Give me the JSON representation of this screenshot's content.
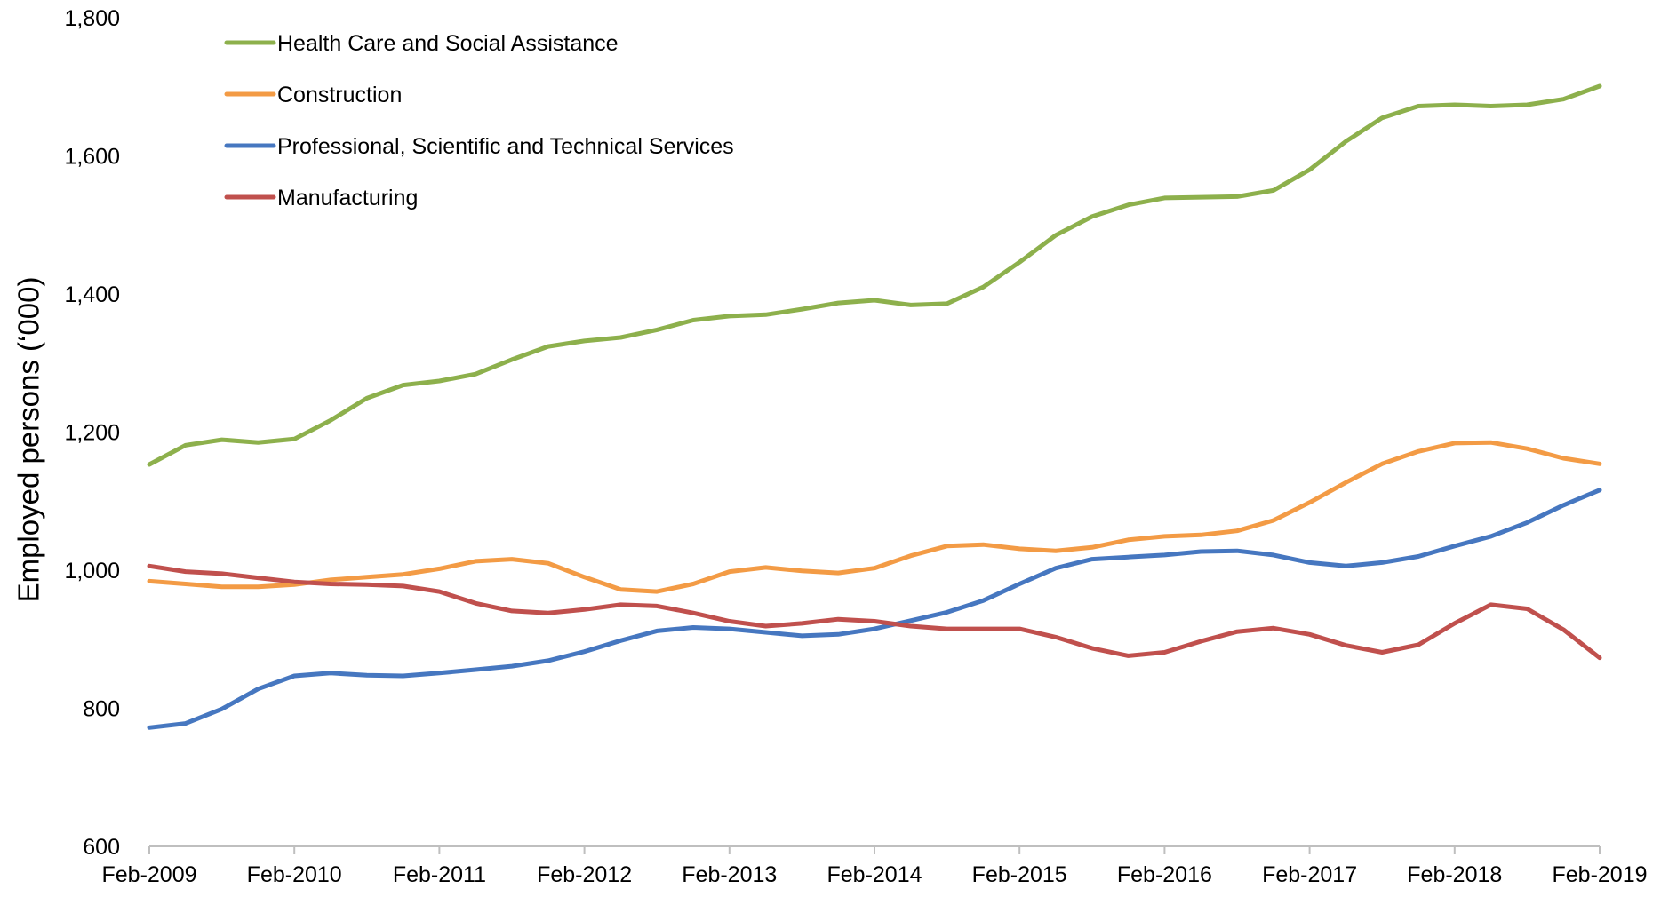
{
  "chart_data": {
    "type": "line",
    "title": "",
    "xlabel": "",
    "ylabel": "Employed persons (‘000)",
    "ylim": [
      600,
      1800
    ],
    "yticks": [
      600,
      800,
      1000,
      1200,
      1400,
      1600,
      1800
    ],
    "ytick_labels": [
      "600",
      "800",
      "1,000",
      "1,200",
      "1,400",
      "1,600",
      "1,800"
    ],
    "x_tick_labels": [
      "Feb-2009",
      "Feb-2010",
      "Feb-2011",
      "Feb-2012",
      "Feb-2013",
      "Feb-2014",
      "Feb-2015",
      "Feb-2016",
      "Feb-2017",
      "Feb-2018",
      "Feb-2019"
    ],
    "x": [
      "Feb-2009",
      "May-2009",
      "Aug-2009",
      "Nov-2009",
      "Feb-2010",
      "May-2010",
      "Aug-2010",
      "Nov-2010",
      "Feb-2011",
      "May-2011",
      "Aug-2011",
      "Nov-2011",
      "Feb-2012",
      "May-2012",
      "Aug-2012",
      "Nov-2012",
      "Feb-2013",
      "May-2013",
      "Aug-2013",
      "Nov-2013",
      "Feb-2014",
      "May-2014",
      "Aug-2014",
      "Nov-2014",
      "Feb-2015",
      "May-2015",
      "Aug-2015",
      "Nov-2015",
      "Feb-2016",
      "May-2016",
      "Aug-2016",
      "Nov-2016",
      "Feb-2017",
      "May-2017",
      "Aug-2017",
      "Nov-2017",
      "Feb-2018",
      "May-2018",
      "Aug-2018",
      "Nov-2018",
      "Feb-2019"
    ],
    "grid": false,
    "legend_position": "top-left",
    "series": [
      {
        "name": "Health Care and Social Assistance",
        "color": "#8db04c",
        "values": [
          1153,
          1181,
          1189,
          1185,
          1190,
          1217,
          1249,
          1268,
          1274,
          1284,
          1305,
          1324,
          1332,
          1337,
          1348,
          1362,
          1368,
          1370,
          1378,
          1387,
          1391,
          1384,
          1386,
          1410,
          1446,
          1485,
          1512,
          1529,
          1539,
          1540,
          1541,
          1550,
          1580,
          1621,
          1655,
          1672,
          1674,
          1672,
          1674,
          1682,
          1701
        ]
      },
      {
        "name": "Construction",
        "color": "#f39b45",
        "values": [
          984,
          980,
          976,
          976,
          979,
          986,
          990,
          994,
          1002,
          1013,
          1016,
          1010,
          990,
          972,
          969,
          980,
          998,
          1004,
          999,
          996,
          1003,
          1021,
          1035,
          1037,
          1031,
          1028,
          1033,
          1044,
          1049,
          1051,
          1057,
          1072,
          1098,
          1127,
          1154,
          1172,
          1184,
          1185,
          1176,
          1162,
          1154
        ]
      },
      {
        "name": "Professional, Scientific and Technical Services",
        "color": "#4677c0",
        "values": [
          772,
          778,
          799,
          828,
          847,
          851,
          848,
          847,
          851,
          856,
          861,
          869,
          882,
          898,
          912,
          917,
          915,
          910,
          905,
          907,
          915,
          927,
          939,
          956,
          980,
          1003,
          1016,
          1019,
          1022,
          1027,
          1028,
          1022,
          1011,
          1006,
          1011,
          1020,
          1035,
          1049,
          1069,
          1094,
          1116
        ]
      },
      {
        "name": "Manufacturing",
        "color": "#c0504d",
        "values": [
          1006,
          998,
          995,
          989,
          983,
          980,
          979,
          977,
          969,
          952,
          941,
          938,
          943,
          950,
          948,
          938,
          926,
          919,
          923,
          929,
          926,
          919,
          915,
          915,
          915,
          903,
          887,
          876,
          881,
          897,
          911,
          916,
          907,
          891,
          881,
          892,
          923,
          950,
          944,
          914,
          873
        ]
      }
    ]
  }
}
